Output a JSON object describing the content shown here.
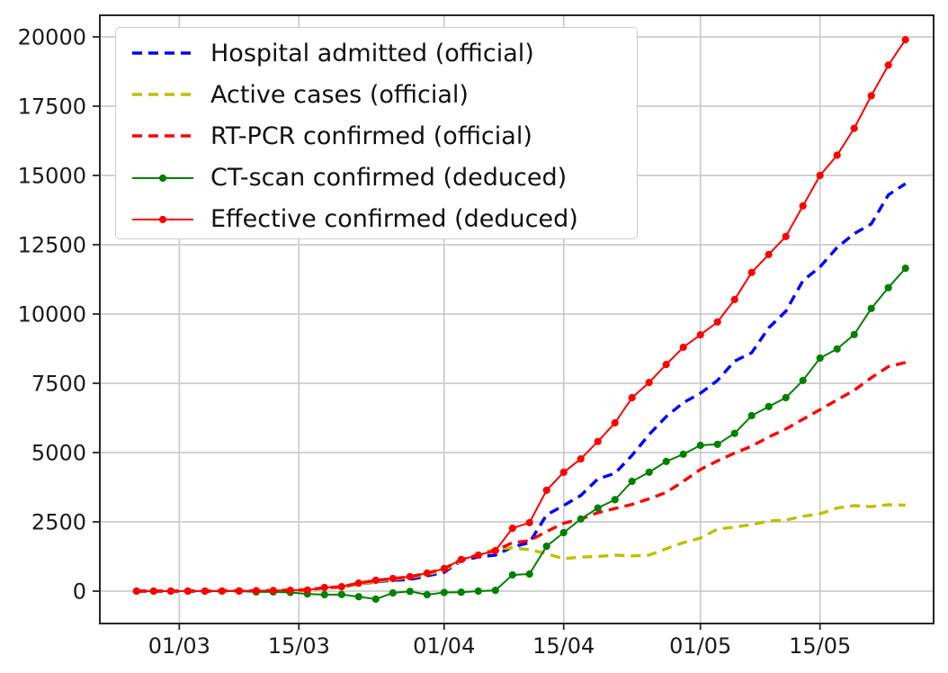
{
  "figure": {
    "background": "#ffffff"
  },
  "chart_data": {
    "type": "line",
    "title": "",
    "xlabel": "",
    "ylabel": "",
    "grid": true,
    "grid_color": "#cccccc",
    "spine_color": "#262626",
    "tick_label_color": "#1a1a1a",
    "legend_position": "upper left",
    "x_unit": "date (DD/MM), points sampled every 2 days from 25/02 to 25/05",
    "x_days": [
      0,
      2,
      4,
      6,
      8,
      10,
      12,
      14,
      16,
      18,
      20,
      22,
      24,
      26,
      28,
      30,
      32,
      34,
      36,
      38,
      40,
      42,
      44,
      46,
      48,
      50,
      52,
      54,
      56,
      58,
      60,
      62,
      64,
      66,
      68,
      70,
      72,
      74,
      76,
      78,
      80,
      82,
      84,
      86,
      88,
      90
    ],
    "xlim_days": [
      -4.3,
      93.3
    ],
    "ylim": [
      -1169,
      20779
    ],
    "xticks": [
      {
        "day": 5,
        "label": "01/03"
      },
      {
        "day": 19,
        "label": "15/03"
      },
      {
        "day": 36,
        "label": "01/04"
      },
      {
        "day": 50,
        "label": "15/04"
      },
      {
        "day": 66,
        "label": "01/05"
      },
      {
        "day": 80,
        "label": "15/05"
      }
    ],
    "yticks": [
      {
        "value": 0,
        "label": "0"
      },
      {
        "value": 2500,
        "label": "2500"
      },
      {
        "value": 5000,
        "label": "5000"
      },
      {
        "value": 7500,
        "label": "7500"
      },
      {
        "value": 10000,
        "label": "10000"
      },
      {
        "value": 12500,
        "label": "12500"
      },
      {
        "value": 15000,
        "label": "15000"
      },
      {
        "value": 17500,
        "label": "17500"
      },
      {
        "value": 20000,
        "label": "20000"
      }
    ],
    "series": [
      {
        "name": "Hospital admitted (official)",
        "color": "#0000ff",
        "style": "dashed",
        "marker": "none",
        "values": [
          0,
          0,
          0,
          0,
          0,
          5,
          5,
          10,
          15,
          25,
          60,
          110,
          140,
          250,
          330,
          390,
          420,
          550,
          680,
          1100,
          1230,
          1300,
          1590,
          1750,
          2750,
          3090,
          3450,
          4050,
          4250,
          4900,
          5650,
          6300,
          6800,
          7140,
          7600,
          8300,
          8600,
          9500,
          10100,
          11200,
          11700,
          12400,
          12900,
          13250,
          14300,
          14700
        ]
      },
      {
        "name": "Active cases (official)",
        "color": "#bfbf00",
        "style": "dashed",
        "marker": "none",
        "values": [
          0,
          0,
          0,
          0,
          0,
          5,
          5,
          10,
          20,
          45,
          75,
          105,
          140,
          250,
          350,
          420,
          490,
          600,
          750,
          1100,
          1330,
          1525,
          1560,
          1495,
          1350,
          1170,
          1230,
          1250,
          1300,
          1270,
          1300,
          1530,
          1750,
          1915,
          2240,
          2310,
          2400,
          2530,
          2565,
          2700,
          2790,
          3000,
          3085,
          3050,
          3120,
          3100
        ]
      },
      {
        "name": "RT-PCR confirmed (official)",
        "color": "#ff0000",
        "style": "dashed",
        "marker": "none",
        "values": [
          0,
          0,
          0,
          0,
          0,
          5,
          10,
          15,
          20,
          30,
          40,
          130,
          160,
          290,
          390,
          455,
          520,
          650,
          810,
          1140,
          1300,
          1460,
          1750,
          1820,
          2150,
          2450,
          2600,
          2830,
          2980,
          3130,
          3330,
          3560,
          3960,
          4390,
          4700,
          4980,
          5230,
          5560,
          5850,
          6200,
          6550,
          6900,
          7250,
          7700,
          8100,
          8250
        ]
      },
      {
        "name": "CT-scan confirmed (deduced)",
        "color": "#008000",
        "style": "solid",
        "marker": "dot",
        "values": [
          0,
          0,
          0,
          0,
          0,
          0,
          0,
          -30,
          -30,
          -50,
          -100,
          -130,
          -120,
          -200,
          -290,
          -65,
          -10,
          -130,
          -50,
          -40,
          0,
          30,
          585,
          617,
          1620,
          2110,
          2600,
          3000,
          3300,
          3960,
          4290,
          4680,
          4940,
          5260,
          5300,
          5690,
          6330,
          6660,
          6980,
          7600,
          8410,
          8740,
          9260,
          10200,
          10950,
          11650
        ]
      },
      {
        "name": "Effective confirmed (deduced)",
        "color": "#ff0000",
        "style": "solid",
        "marker": "dot",
        "values": [
          0,
          0,
          0,
          0,
          0,
          5,
          10,
          15,
          20,
          30,
          40,
          130,
          160,
          290,
          390,
          455,
          520,
          650,
          810,
          1140,
          1300,
          1460,
          2270,
          2470,
          3640,
          4290,
          4770,
          5400,
          6070,
          6980,
          7530,
          8180,
          8800,
          9250,
          9710,
          10520,
          11500,
          12150,
          12800,
          13900,
          15000,
          15730,
          16700,
          17875,
          18980,
          19900
        ]
      }
    ]
  }
}
